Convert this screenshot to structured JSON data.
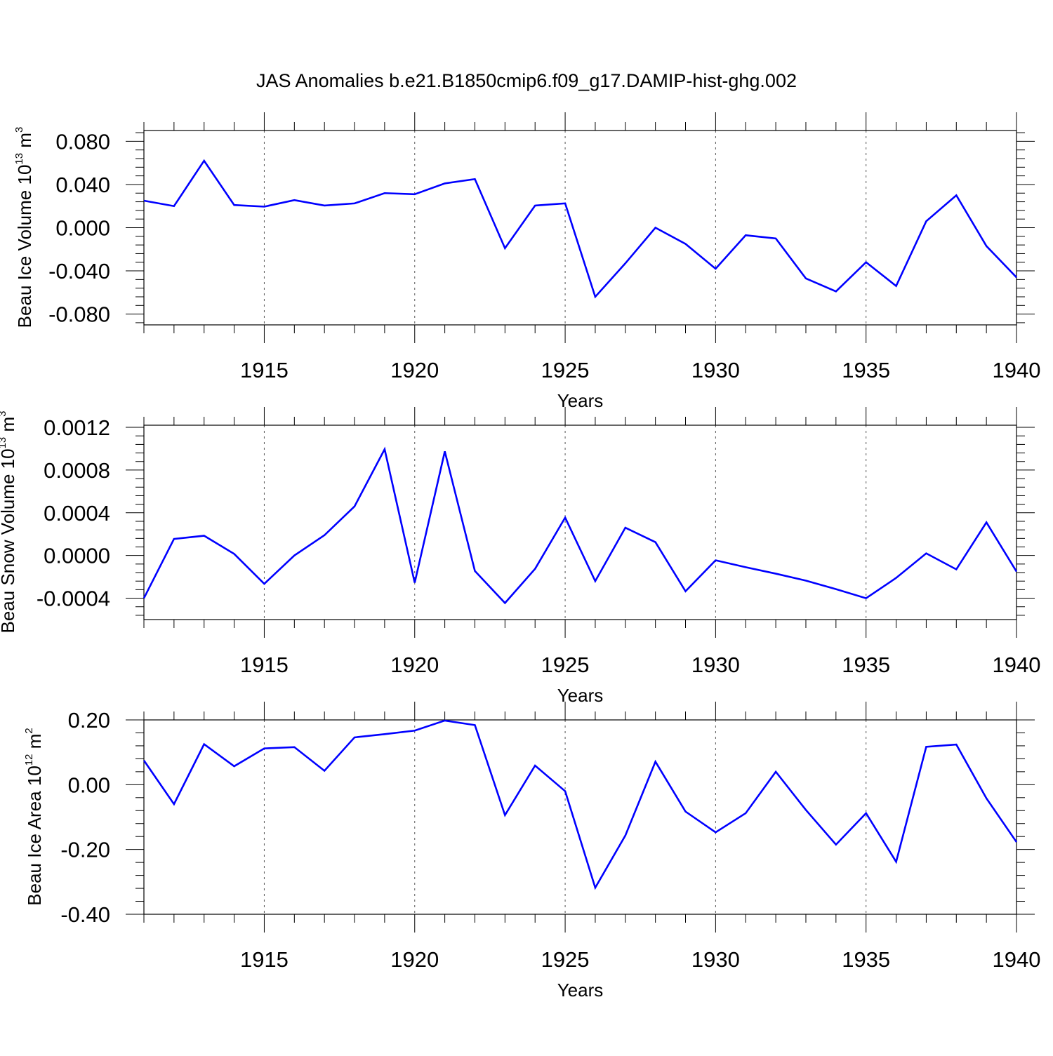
{
  "title": "JAS Anomalies b.e21.B1850cmip6.f09_g17.DAMIP-hist-ghg.002",
  "colors": {
    "line": "#0000ff",
    "axes": "#000000",
    "grid": "#555555"
  },
  "chart_data": [
    {
      "type": "line",
      "name": "volume",
      "ylabel": "Beau Ice Volume 10",
      "ylabel_exponent": "13",
      "ylabel_unit": " m",
      "ylabel_unit_exponent": "3",
      "xlabel": "Years",
      "xlim": [
        1911,
        1940
      ],
      "ylim": [
        -0.09,
        0.09
      ],
      "xticks": [
        1915,
        1920,
        1925,
        1930,
        1935,
        1940
      ],
      "xtick_labels": [
        "1915",
        "1920",
        "1925",
        "1930",
        "1935",
        "1940"
      ],
      "yticks": [
        0.08,
        0.04,
        0.0,
        -0.04,
        -0.08
      ],
      "ytick_labels": [
        "0.080",
        "0.040",
        "0.000",
        "-0.040",
        "-0.080"
      ],
      "grid_x": [
        1915,
        1920,
        1925,
        1930,
        1935
      ],
      "x": [
        1911,
        1912,
        1913,
        1914,
        1915,
        1916,
        1917,
        1918,
        1919,
        1920,
        1921,
        1922,
        1923,
        1924,
        1925,
        1926,
        1927,
        1928,
        1929,
        1930,
        1931,
        1932,
        1933,
        1934,
        1935,
        1936,
        1937,
        1938,
        1939,
        1940
      ],
      "series": [
        {
          "name": "Beau Ice Volume",
          "values": [
            0.025,
            0.02,
            0.062,
            0.021,
            0.0195,
            0.0255,
            0.0205,
            0.0225,
            0.032,
            0.031,
            0.041,
            0.045,
            -0.019,
            0.0205,
            0.0225,
            -0.064,
            -0.033,
            0.0,
            -0.015,
            -0.038,
            -0.007,
            -0.01,
            -0.047,
            -0.059,
            -0.032,
            -0.054,
            0.006,
            0.03,
            -0.017,
            -0.046
          ]
        }
      ]
    },
    {
      "type": "line",
      "name": "snow",
      "ylabel": "Beau Snow Volume 10",
      "ylabel_exponent": "13",
      "ylabel_unit": " m",
      "ylabel_unit_exponent": "3",
      "xlabel": "Years",
      "xlim": [
        1911,
        1940
      ],
      "ylim": [
        -0.0006,
        0.00122
      ],
      "xticks": [
        1915,
        1920,
        1925,
        1930,
        1935,
        1940
      ],
      "xtick_labels": [
        "1915",
        "1920",
        "1925",
        "1930",
        "1935",
        "1940"
      ],
      "yticks": [
        0.0012,
        0.0008,
        0.0004,
        0.0,
        -0.0004
      ],
      "ytick_labels": [
        "0.0012",
        "0.0008",
        "0.0004",
        "0.0000",
        "-0.0004"
      ],
      "grid_x": [
        1915,
        1920,
        1925,
        1930,
        1935
      ],
      "x": [
        1911,
        1912,
        1913,
        1914,
        1915,
        1916,
        1917,
        1918,
        1919,
        1920,
        1921,
        1922,
        1923,
        1924,
        1925,
        1926,
        1927,
        1928,
        1929,
        1930,
        1931,
        1932,
        1933,
        1934,
        1935,
        1936,
        1937,
        1938,
        1939,
        1940
      ],
      "series": [
        {
          "name": "Beau Snow Volume",
          "values": [
            -0.0004,
            0.000155,
            0.000185,
            1.5e-05,
            -0.000265,
            0.0,
            0.00019,
            0.00046,
            0.000995,
            -0.000255,
            0.000975,
            -0.000145,
            -0.000445,
            -0.000125,
            0.000355,
            -0.00024,
            0.00026,
            0.000125,
            -0.000335,
            -4.5e-05,
            -0.00011,
            -0.00017,
            -0.000235,
            -0.000315,
            -0.0004,
            -0.00021,
            2e-05,
            -0.00013,
            0.00031,
            -0.00015
          ]
        }
      ]
    },
    {
      "type": "line",
      "name": "area",
      "ylabel": "Beau Ice Area 10",
      "ylabel_exponent": "12",
      "ylabel_unit": " m",
      "ylabel_unit_exponent": "2",
      "xlabel": "Years",
      "xlim": [
        1911,
        1940
      ],
      "ylim": [
        -0.4,
        0.2
      ],
      "xticks": [
        1915,
        1920,
        1925,
        1930,
        1935,
        1940
      ],
      "xtick_labels": [
        "1915",
        "1920",
        "1925",
        "1930",
        "1935",
        "1940"
      ],
      "yticks": [
        0.2,
        0.0,
        -0.2,
        -0.4
      ],
      "ytick_labels": [
        "0.20",
        "0.00",
        "-0.20",
        "-0.40"
      ],
      "grid_x": [
        1915,
        1920,
        1925,
        1930,
        1935
      ],
      "x": [
        1911,
        1912,
        1913,
        1914,
        1915,
        1916,
        1917,
        1918,
        1919,
        1920,
        1921,
        1922,
        1923,
        1924,
        1925,
        1926,
        1927,
        1928,
        1929,
        1930,
        1931,
        1932,
        1933,
        1934,
        1935,
        1936,
        1937,
        1938,
        1939,
        1940
      ],
      "series": [
        {
          "name": "Beau Ice Area",
          "values": [
            0.075,
            -0.06,
            0.125,
            0.057,
            0.112,
            0.116,
            0.043,
            0.146,
            0.156,
            0.167,
            0.198,
            0.184,
            -0.094,
            0.059,
            -0.02,
            -0.318,
            -0.157,
            0.071,
            -0.083,
            -0.147,
            -0.088,
            0.04,
            -0.078,
            -0.185,
            -0.088,
            -0.238,
            0.117,
            0.124,
            -0.042,
            -0.177
          ]
        }
      ]
    }
  ]
}
